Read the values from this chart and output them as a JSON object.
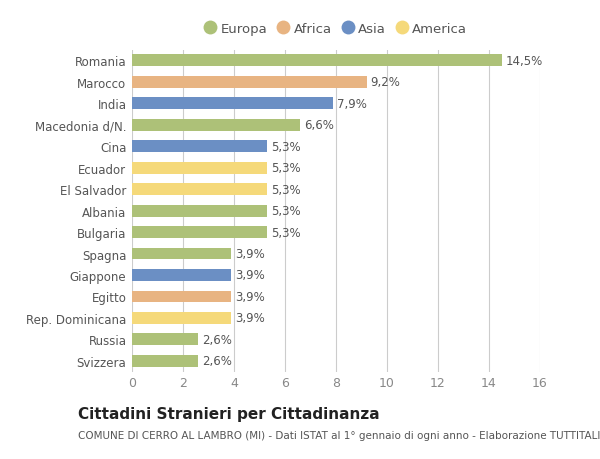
{
  "categories": [
    "Romania",
    "Marocco",
    "India",
    "Macedonia d/N.",
    "Cina",
    "Ecuador",
    "El Salvador",
    "Albania",
    "Bulgaria",
    "Spagna",
    "Giappone",
    "Egitto",
    "Rep. Dominicana",
    "Russia",
    "Svizzera"
  ],
  "values": [
    14.5,
    9.2,
    7.9,
    6.6,
    5.3,
    5.3,
    5.3,
    5.3,
    5.3,
    3.9,
    3.9,
    3.9,
    3.9,
    2.6,
    2.6
  ],
  "labels": [
    "14,5%",
    "9,2%",
    "7,9%",
    "6,6%",
    "5,3%",
    "5,3%",
    "5,3%",
    "5,3%",
    "5,3%",
    "3,9%",
    "3,9%",
    "3,9%",
    "3,9%",
    "2,6%",
    "2,6%"
  ],
  "continents": [
    "Europa",
    "Africa",
    "Asia",
    "Europa",
    "Asia",
    "America",
    "America",
    "Europa",
    "Europa",
    "Europa",
    "Asia",
    "Africa",
    "America",
    "Europa",
    "Europa"
  ],
  "continent_colors": {
    "Europa": "#adc178",
    "Africa": "#e8b482",
    "Asia": "#6b8fc4",
    "America": "#f5d97a"
  },
  "legend_items": [
    "Europa",
    "Africa",
    "Asia",
    "America"
  ],
  "xlim": [
    0,
    16
  ],
  "xticks": [
    0,
    2,
    4,
    6,
    8,
    10,
    12,
    14,
    16
  ],
  "title": "Cittadini Stranieri per Cittadinanza",
  "subtitle": "COMUNE DI CERRO AL LAMBRO (MI) - Dati ISTAT al 1° gennaio di ogni anno - Elaborazione TUTTITALIA.IT",
  "fig_background": "#ffffff",
  "plot_background": "#ffffff",
  "bar_height": 0.55,
  "label_fontsize": 8.5,
  "ytick_fontsize": 8.5,
  "xtick_fontsize": 9,
  "title_fontsize": 11,
  "subtitle_fontsize": 7.5,
  "legend_fontsize": 9.5
}
